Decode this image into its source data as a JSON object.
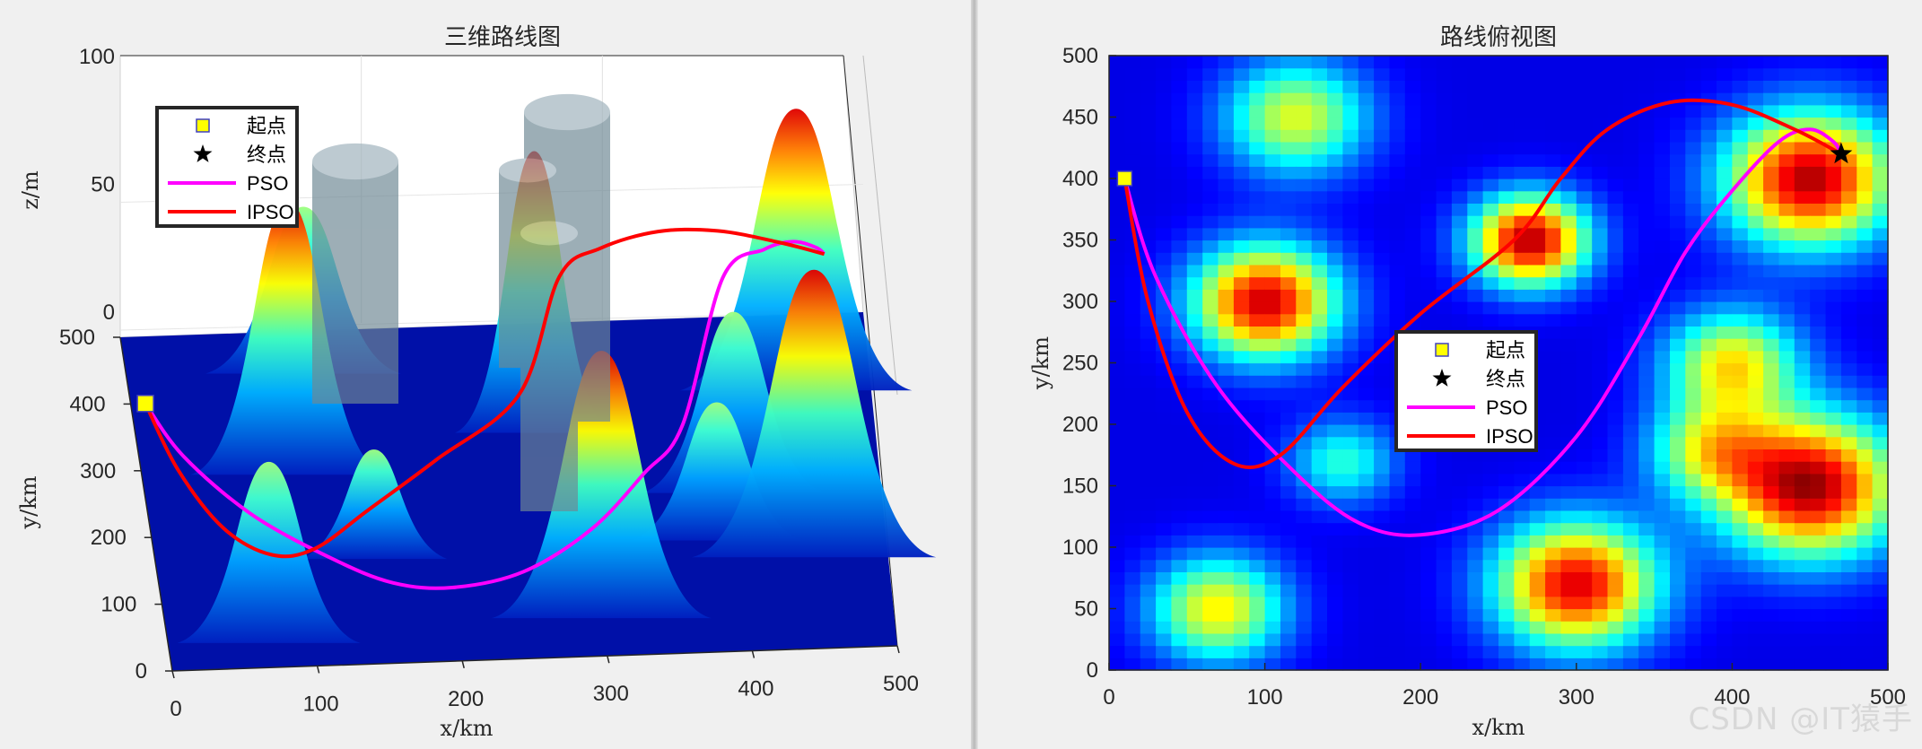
{
  "watermark": "CSDN @IT猿手",
  "colors": {
    "pso": "#ff00ff",
    "ipso": "#ff0000",
    "start": "#ffff00",
    "end": "#000000",
    "axis": "#262626",
    "cylinder": "#6e8894"
  },
  "legend_entries": [
    {
      "label": "起点",
      "marker": "yellow-square"
    },
    {
      "label": "终点",
      "marker": "black-star"
    },
    {
      "label": "PSO",
      "marker": "magenta-line"
    },
    {
      "label": "IPSO",
      "marker": "red-line"
    }
  ],
  "chart_data": [
    {
      "type": "surface3d",
      "title": "三维路线图",
      "xlabel": "x/km",
      "ylabel": "y/km",
      "zlabel": "z/m",
      "xticks": [
        "0",
        "100",
        "200",
        "300",
        "400",
        "500"
      ],
      "yticks": [
        "0",
        "100",
        "200",
        "300",
        "400",
        "500"
      ],
      "zticks": [
        "0",
        "50",
        "100"
      ],
      "xlim": [
        0,
        500
      ],
      "ylim": [
        0,
        500
      ],
      "zlim": [
        0,
        100
      ],
      "obstacles": "cylinders",
      "legend_position": "top-left"
    },
    {
      "type": "heatmap",
      "title": "路线俯视图",
      "xlabel": "x/km",
      "ylabel": "y/km",
      "xticks": [
        "0",
        "100",
        "200",
        "300",
        "400",
        "500"
      ],
      "yticks": [
        "0",
        "50",
        "100",
        "150",
        "200",
        "250",
        "300",
        "350",
        "400",
        "450",
        "500"
      ],
      "xlim": [
        0,
        500
      ],
      "ylim": [
        0,
        500
      ],
      "legend_position": "center",
      "peaks": [
        {
          "x": 120,
          "y": 450,
          "amp": 0.55,
          "s": 32
        },
        {
          "x": 100,
          "y": 300,
          "amp": 0.92,
          "s": 32
        },
        {
          "x": 270,
          "y": 350,
          "amp": 0.95,
          "s": 26
        },
        {
          "x": 450,
          "y": 400,
          "amp": 0.95,
          "s": 38
        },
        {
          "x": 400,
          "y": 250,
          "amp": 0.6,
          "s": 30
        },
        {
          "x": 450,
          "y": 150,
          "amp": 0.97,
          "s": 40
        },
        {
          "x": 300,
          "y": 70,
          "amp": 0.9,
          "s": 36
        },
        {
          "x": 70,
          "y": 50,
          "amp": 0.6,
          "s": 30
        },
        {
          "x": 150,
          "y": 170,
          "amp": 0.35,
          "s": 24
        },
        {
          "x": 385,
          "y": 180,
          "amp": 0.45,
          "s": 28
        }
      ],
      "start": {
        "x": 10,
        "y": 400
      },
      "end": {
        "x": 470,
        "y": 420
      },
      "series": [
        {
          "name": "PSO",
          "points": [
            [
              10,
              400
            ],
            [
              30,
              320
            ],
            [
              70,
              230
            ],
            [
              120,
              160
            ],
            [
              160,
              120
            ],
            [
              200,
              110
            ],
            [
              250,
              130
            ],
            [
              300,
              190
            ],
            [
              340,
              270
            ],
            [
              370,
              340
            ],
            [
              400,
              390
            ],
            [
              430,
              430
            ],
            [
              450,
              440
            ],
            [
              465,
              430
            ],
            [
              470,
              420
            ]
          ]
        },
        {
          "name": "IPSO",
          "points": [
            [
              10,
              400
            ],
            [
              25,
              300
            ],
            [
              50,
              210
            ],
            [
              80,
              168
            ],
            [
              110,
              175
            ],
            [
              150,
              230
            ],
            [
              200,
              290
            ],
            [
              260,
              350
            ],
            [
              290,
              400
            ],
            [
              320,
              440
            ],
            [
              360,
              462
            ],
            [
              400,
              460
            ],
            [
              440,
              440
            ],
            [
              470,
              420
            ]
          ]
        }
      ]
    }
  ]
}
